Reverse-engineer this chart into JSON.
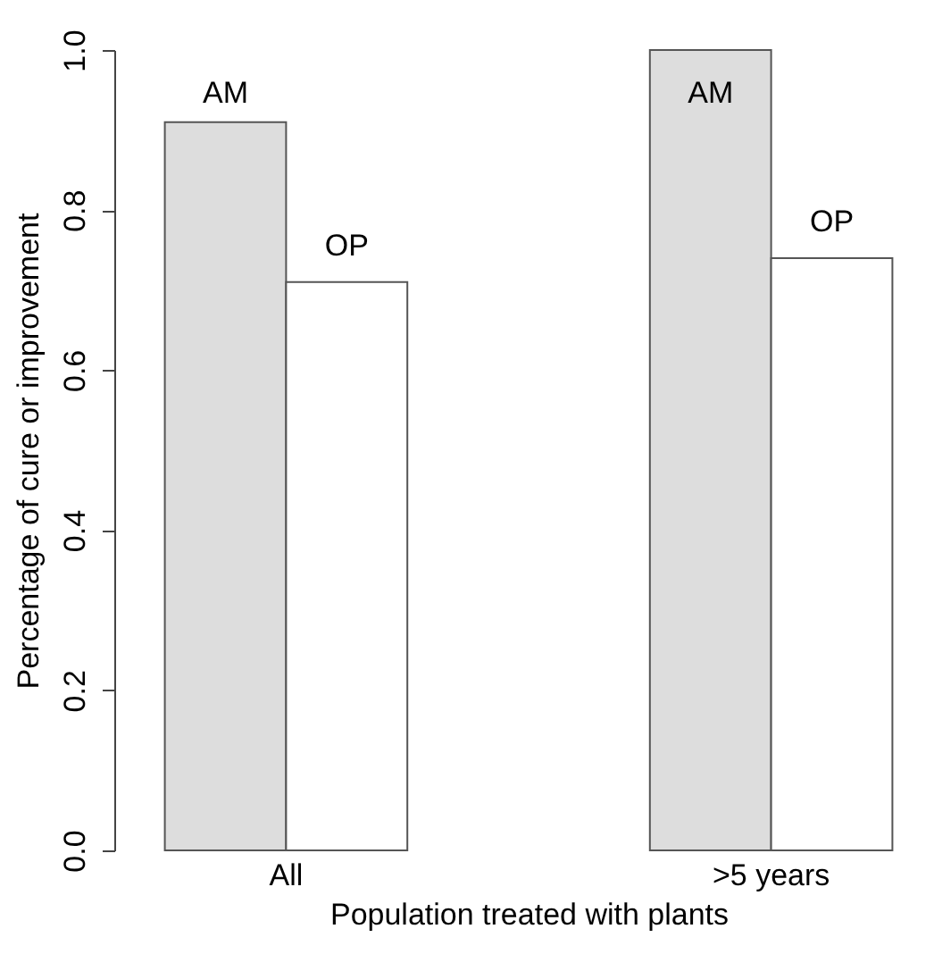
{
  "chart_data": {
    "type": "bar",
    "xlabel": "Population treated with plants",
    "ylabel": "Percentage of cure or improvement",
    "categories": [
      "All",
      ">5 years"
    ],
    "series": [
      {
        "name": "AM",
        "color": "#dddddd",
        "values": [
          0.91,
          1.0
        ]
      },
      {
        "name": "OP",
        "color": "#ffffff",
        "values": [
          0.71,
          0.74
        ]
      }
    ],
    "ylim": [
      0,
      1
    ],
    "yticks": [
      {
        "value": 0,
        "label": "0.0"
      },
      {
        "value": 0.2,
        "label": "0.2"
      },
      {
        "value": 0.4,
        "label": "0.4"
      },
      {
        "value": 0.6,
        "label": "0.6"
      },
      {
        "value": 0.8,
        "label": "0.8"
      },
      {
        "value": 1,
        "label": "1.0"
      }
    ],
    "grid": false
  }
}
